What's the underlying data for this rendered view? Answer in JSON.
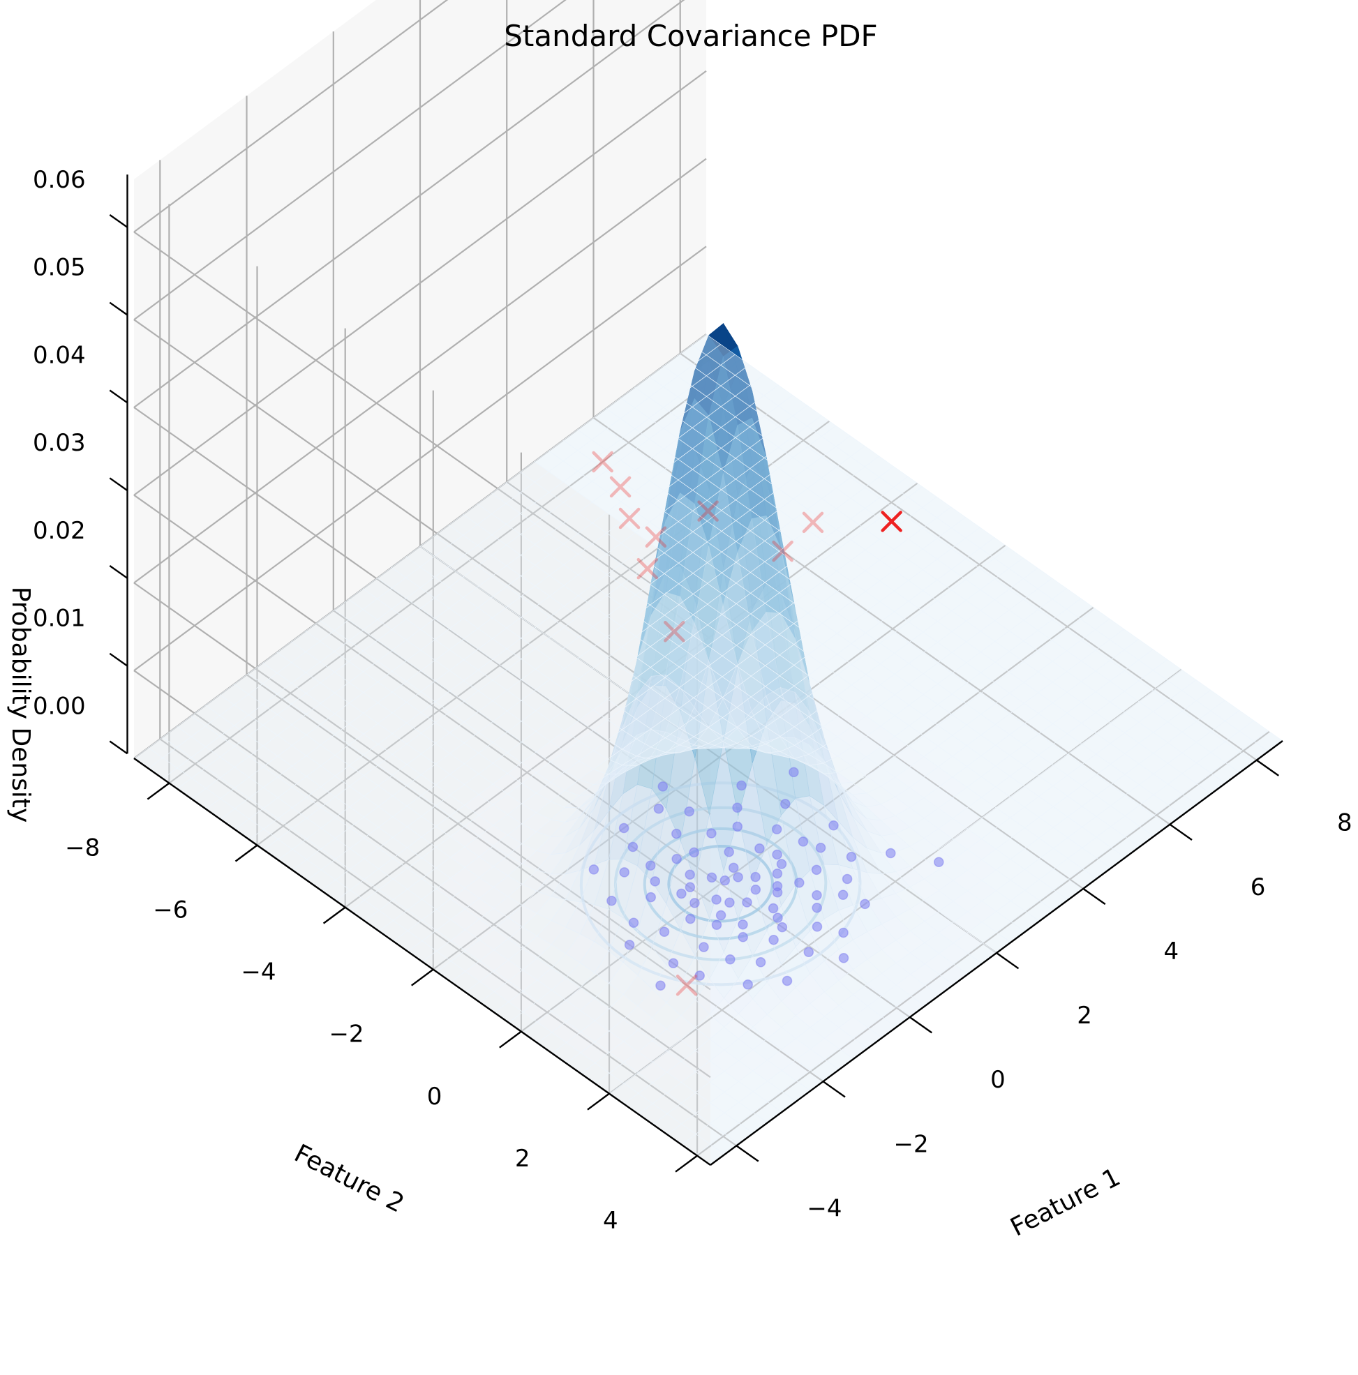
{
  "chart_data": {
    "type": "surface3d",
    "title": "Standard Covariance PDF",
    "xlabel": "Feature 1",
    "ylabel": "Feature 2",
    "zlabel": "Probability Density",
    "xlim": [
      -4.6,
      8.6
    ],
    "ylim": [
      -8.8,
      4.3
    ],
    "zlim": [
      0,
      0.066
    ],
    "xticks": [
      -4,
      -2,
      0,
      2,
      4,
      6,
      8
    ],
    "yticks": [
      -8,
      -6,
      -4,
      -2,
      0,
      2,
      4
    ],
    "zticks": [
      0.0,
      0.01,
      0.02,
      0.03,
      0.04,
      0.05,
      0.06
    ],
    "xtick_labels": [
      "−4",
      "−2",
      "0",
      "2",
      "4",
      "6",
      "8"
    ],
    "ytick_labels": [
      "−8",
      "−6",
      "−4",
      "−2",
      "0",
      "2",
      "4"
    ],
    "ztick_labels": [
      "0.00",
      "0.01",
      "0.02",
      "0.03",
      "0.04",
      "0.05",
      "0.06"
    ],
    "grid": true,
    "colormap": "Blues",
    "surface": {
      "distribution": "bivariate normal",
      "mean": [
        0,
        0
      ],
      "covariance": [
        [
          1,
          0
        ],
        [
          0,
          1
        ]
      ],
      "peak_density": 0.064
    },
    "contour_levels": [
      0.005,
      0.015,
      0.03,
      0.045
    ],
    "inlier_points": {
      "marker": "circle",
      "color": "#7b7bf0",
      "points": [
        [
          -0.7,
          0.6
        ],
        [
          -0.4,
          0.9
        ],
        [
          0.1,
          1.2
        ],
        [
          0.5,
          0.8
        ],
        [
          -0.9,
          0.2
        ],
        [
          -0.2,
          0.4
        ],
        [
          0.3,
          0.1
        ],
        [
          0.8,
          0.5
        ],
        [
          -0.6,
          -0.3
        ],
        [
          0.0,
          -0.2
        ],
        [
          0.6,
          -0.4
        ],
        [
          1.1,
          0.2
        ],
        [
          -1.2,
          0.8
        ],
        [
          -0.3,
          1.5
        ],
        [
          0.9,
          1.3
        ],
        [
          1.3,
          0.9
        ],
        [
          -1.0,
          -0.6
        ],
        [
          0.2,
          -0.8
        ],
        [
          0.7,
          -0.9
        ],
        [
          -0.5,
          -1.1
        ],
        [
          1.5,
          -0.2
        ],
        [
          -1.4,
          0.1
        ],
        [
          0.4,
          1.8
        ],
        [
          1.7,
          0.6
        ],
        [
          -0.8,
          1.7
        ],
        [
          0.0,
          0.6
        ],
        [
          -0.2,
          -0.5
        ],
        [
          0.5,
          0.3
        ],
        [
          1.0,
          -0.1
        ],
        [
          -0.6,
          1.1
        ],
        [
          0.3,
          -1.3
        ],
        [
          -1.1,
          1.3
        ],
        [
          1.2,
          1.6
        ],
        [
          -0.1,
          2.1
        ],
        [
          1.9,
          1.1
        ],
        [
          -1.6,
          -0.4
        ],
        [
          0.8,
          -1.5
        ],
        [
          -0.4,
          -1.6
        ],
        [
          2.0,
          -0.5
        ],
        [
          -1.8,
          0.7
        ],
        [
          0.6,
          2.2
        ],
        [
          1.4,
          -1.0
        ],
        [
          -0.9,
          -1.3
        ],
        [
          0.1,
          0.0
        ],
        [
          0.4,
          -0.1
        ],
        [
          -0.3,
          0.2
        ],
        [
          0.9,
          0.9
        ],
        [
          -0.7,
          -0.8
        ],
        [
          1.6,
          0.3
        ],
        [
          -1.3,
          1.9
        ],
        [
          0.2,
          1.0
        ],
        [
          -0.5,
          0.5
        ],
        [
          1.1,
          -0.7
        ],
        [
          0.7,
          1.5
        ],
        [
          -1.5,
          -1.0
        ],
        [
          2.2,
          0.4
        ],
        [
          -0.2,
          -2.0
        ],
        [
          1.8,
          -1.3
        ],
        [
          0.0,
          1.4
        ],
        [
          -2.0,
          -0.1
        ],
        [
          0.5,
          -1.9
        ],
        [
          1.3,
          2.0
        ],
        [
          -0.8,
          2.3
        ],
        [
          2.4,
          1.5
        ],
        [
          -1.2,
          -1.7
        ],
        [
          0.9,
          -2.2
        ],
        [
          0.3,
          0.5
        ],
        [
          -0.1,
          -0.9
        ],
        [
          1.5,
          1.4
        ],
        [
          -1.7,
          1.2
        ],
        [
          2.6,
          -0.9
        ],
        [
          -2.3,
          0.9
        ],
        [
          0.2,
          2.6
        ],
        [
          1.0,
          0.4
        ],
        [
          -0.4,
          -0.3
        ],
        [
          0.6,
          0.7
        ],
        [
          2.8,
          2.2
        ],
        [
          -0.6,
          0.0
        ]
      ]
    },
    "outlier_points": {
      "marker": "x",
      "color": "#ee2222",
      "points": [
        [
          -2.0,
          1.2
        ],
        [
          3.5,
          -4.5
        ],
        [
          4.2,
          -5.8
        ],
        [
          4.8,
          -6.2
        ],
        [
          4.8,
          -6.8
        ],
        [
          5.8,
          -6.0
        ],
        [
          5.2,
          -7.4
        ],
        [
          5.4,
          -8.0
        ],
        [
          6.0,
          -4.5
        ],
        [
          6.8,
          -4.6
        ],
        [
          7.7,
          -3.7
        ]
      ]
    }
  }
}
